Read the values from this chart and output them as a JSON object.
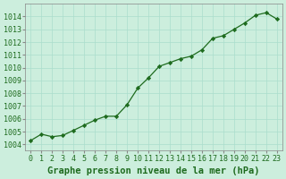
{
  "title": "Graphe pression niveau de la mer (hPa)",
  "x_values": [
    0,
    1,
    2,
    3,
    4,
    5,
    6,
    7,
    8,
    9,
    10,
    11,
    12,
    13,
    14,
    15,
    16,
    17,
    18,
    19,
    20,
    21,
    22,
    23
  ],
  "y_values": [
    1004.3,
    1004.8,
    1004.6,
    1004.7,
    1005.1,
    1005.5,
    1005.9,
    1006.2,
    1006.2,
    1007.1,
    1008.4,
    1009.2,
    1010.1,
    1010.4,
    1010.7,
    1010.9,
    1011.4,
    1012.3,
    1012.5,
    1013.0,
    1013.5,
    1014.1,
    1014.3,
    1013.8
  ],
  "ylim": [
    1003.5,
    1015.0
  ],
  "xlim": [
    -0.5,
    23.5
  ],
  "yticks": [
    1004,
    1005,
    1006,
    1007,
    1008,
    1009,
    1010,
    1011,
    1012,
    1013,
    1014
  ],
  "xticks": [
    0,
    1,
    2,
    3,
    4,
    5,
    6,
    7,
    8,
    9,
    10,
    11,
    12,
    13,
    14,
    15,
    16,
    17,
    18,
    19,
    20,
    21,
    22,
    23
  ],
  "line_color": "#1e6b1e",
  "marker_color": "#1e6b1e",
  "bg_color": "#cceedd",
  "grid_color": "#aaddcc",
  "axes_color": "#888888",
  "title_color": "#1e6b1e",
  "tick_color": "#1e6b1e",
  "title_fontsize": 7.5,
  "tick_fontsize": 6
}
